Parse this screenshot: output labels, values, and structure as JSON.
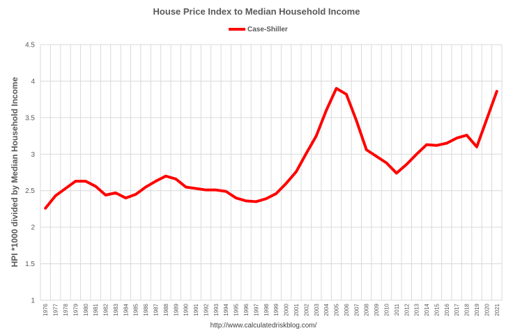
{
  "chart_data": {
    "type": "line",
    "title": "House Price Index to Median Household Income",
    "ylabel": "HPI *1000 divided by Median Household Income",
    "xlabel": "",
    "source": "http://www.calculatedriskblog.com/",
    "ylim": [
      1,
      4.5
    ],
    "yticks": [
      "1",
      "1.5",
      "2",
      "2.5",
      "3",
      "3.5",
      "4",
      "4.5"
    ],
    "ytick_values": [
      1,
      1.5,
      2,
      2.5,
      3,
      3.5,
      4,
      4.5
    ],
    "grid": true,
    "legend": "top-center",
    "categories": [
      "1976",
      "1977",
      "1978",
      "1979",
      "1980",
      "1981",
      "1982",
      "1983",
      "1984",
      "1985",
      "1986",
      "1987",
      "1988",
      "1989",
      "1990",
      "1991",
      "1992",
      "1993",
      "1994",
      "1995",
      "1996",
      "1997",
      "1998",
      "1999",
      "2000",
      "2001",
      "2002",
      "2003",
      "2004",
      "2005",
      "2006",
      "2007",
      "2008",
      "2009",
      "2010",
      "2011",
      "2012",
      "2013",
      "2014",
      "2015",
      "2016",
      "2017",
      "2018",
      "2019",
      "2020",
      "2021"
    ],
    "series": [
      {
        "name": "Case-Shiller",
        "color": "#ff0000",
        "values": [
          2.26,
          2.43,
          2.53,
          2.63,
          2.63,
          2.56,
          2.44,
          2.47,
          2.4,
          2.45,
          2.55,
          2.63,
          2.7,
          2.66,
          2.55,
          2.53,
          2.51,
          2.51,
          2.49,
          2.4,
          2.36,
          2.35,
          2.39,
          2.46,
          2.6,
          2.76,
          3.01,
          3.25,
          3.6,
          3.9,
          3.82,
          3.46,
          3.06,
          2.97,
          2.88,
          2.74,
          2.86,
          3.0,
          3.13,
          3.12,
          3.15,
          3.22,
          3.26,
          3.1,
          3.48,
          3.86
        ]
      }
    ]
  }
}
